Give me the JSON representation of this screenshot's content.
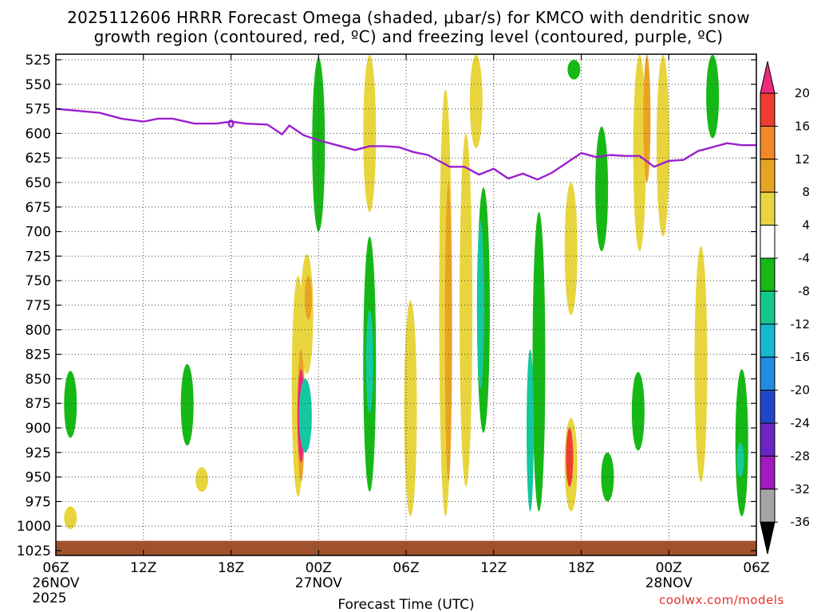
{
  "chart_data": {
    "type": "heatmap",
    "title_line1": "2025112606 HRRR Forecast Omega (shaded, μbar/s) for KMCO with dendritic snow",
    "title_line2": "growth region (contoured, red, ºC) and freezing level (contoured, purple, ºC)",
    "xlabel": "Forecast Time (UTC)",
    "ylabel": "Pressure (hPa)",
    "x_range_hours": [
      0,
      48
    ],
    "y_range_hpa": [
      525,
      1025
    ],
    "x_ticks": [
      {
        "hour": 0,
        "label": "06Z",
        "date": "26NOV",
        "year": "2025"
      },
      {
        "hour": 6,
        "label": "12Z"
      },
      {
        "hour": 12,
        "label": "18Z"
      },
      {
        "hour": 18,
        "label": "00Z",
        "date": "27NOV"
      },
      {
        "hour": 24,
        "label": "06Z"
      },
      {
        "hour": 30,
        "label": "12Z"
      },
      {
        "hour": 36,
        "label": "18Z"
      },
      {
        "hour": 42,
        "label": "00Z",
        "date": "28NOV"
      },
      {
        "hour": 48,
        "label": "06Z"
      }
    ],
    "y_ticks": [
      525,
      550,
      575,
      600,
      625,
      650,
      675,
      700,
      725,
      750,
      775,
      800,
      825,
      850,
      875,
      900,
      925,
      950,
      975,
      1000,
      1025
    ],
    "freezing_level": {
      "label": "0",
      "hours": [
        0,
        1.5,
        3,
        4.5,
        6,
        7,
        8,
        9.5,
        11,
        12,
        13,
        14.5,
        15.5,
        16,
        17,
        18,
        19,
        20.5,
        21.5,
        22.5,
        23.5,
        24.5,
        25.5,
        27,
        28,
        29,
        30,
        31,
        32,
        33,
        34,
        35,
        36,
        37,
        38,
        39,
        40,
        41,
        42,
        43,
        44,
        45,
        46,
        47,
        48
      ],
      "pressure": [
        575,
        577,
        579,
        585,
        588,
        585,
        585,
        590,
        590,
        588,
        590,
        591,
        601,
        592,
        602,
        607,
        611,
        617,
        613,
        613,
        614,
        619,
        622,
        634,
        634,
        642,
        636,
        646,
        641,
        647,
        640,
        630,
        620,
        624,
        622,
        623,
        623,
        634,
        628,
        627,
        618,
        614,
        610,
        612,
        612
      ]
    },
    "ground": {
      "pressure_top": 1015
    },
    "omega_regions": [
      {
        "hour": 1.0,
        "p_top": 842,
        "p_bot": 910,
        "value": -6
      },
      {
        "hour": 1.0,
        "p_top": 980,
        "p_bot": 1003,
        "value": 5
      },
      {
        "hour": 9.0,
        "p_top": 835,
        "p_bot": 918,
        "value": -6
      },
      {
        "hour": 10.0,
        "p_top": 940,
        "p_bot": 965,
        "value": 5
      },
      {
        "hour": 16.6,
        "p_top": 745,
        "p_bot": 970,
        "value": 5
      },
      {
        "hour": 16.8,
        "p_top": 820,
        "p_bot": 955,
        "value": 10
      },
      {
        "hour": 16.8,
        "p_top": 840,
        "p_bot": 935,
        "value": 18
      },
      {
        "hour": 17.2,
        "p_top": 723,
        "p_bot": 845,
        "value": 5
      },
      {
        "hour": 17.3,
        "p_top": 745,
        "p_bot": 790,
        "value": 10
      },
      {
        "hour": 17.1,
        "p_top": 850,
        "p_bot": 925,
        "value": -8
      },
      {
        "hour": 18.0,
        "p_top": 523,
        "p_bot": 700,
        "value": -6
      },
      {
        "hour": 21.5,
        "p_top": 520,
        "p_bot": 680,
        "value": 5
      },
      {
        "hour": 21.5,
        "p_top": 705,
        "p_bot": 965,
        "value": -6
      },
      {
        "hour": 21.5,
        "p_top": 780,
        "p_bot": 885,
        "value": -10
      },
      {
        "hour": 24.3,
        "p_top": 770,
        "p_bot": 990,
        "value": 5
      },
      {
        "hour": 26.7,
        "p_top": 555,
        "p_bot": 990,
        "value": 5
      },
      {
        "hour": 26.9,
        "p_top": 650,
        "p_bot": 955,
        "value": 9
      },
      {
        "hour": 28.1,
        "p_top": 600,
        "p_bot": 960,
        "value": 5
      },
      {
        "hour": 28.8,
        "p_top": 520,
        "p_bot": 615,
        "value": 5
      },
      {
        "hour": 29.3,
        "p_top": 655,
        "p_bot": 905,
        "value": -6
      },
      {
        "hour": 29.1,
        "p_top": 690,
        "p_bot": 860,
        "value": -10
      },
      {
        "hour": 33.1,
        "p_top": 680,
        "p_bot": 985,
        "value": -6
      },
      {
        "hour": 32.5,
        "p_top": 820,
        "p_bot": 985,
        "value": -10
      },
      {
        "hour": 35.3,
        "p_top": 890,
        "p_bot": 985,
        "value": 5
      },
      {
        "hour": 35.2,
        "p_top": 900,
        "p_bot": 960,
        "value": 16
      },
      {
        "hour": 35.3,
        "p_top": 650,
        "p_bot": 785,
        "value": 5
      },
      {
        "hour": 35.5,
        "p_top": 525,
        "p_bot": 545,
        "value": -6
      },
      {
        "hour": 37.4,
        "p_top": 593,
        "p_bot": 720,
        "value": -6
      },
      {
        "hour": 37.8,
        "p_top": 925,
        "p_bot": 975,
        "value": -6
      },
      {
        "hour": 40.0,
        "p_top": 520,
        "p_bot": 720,
        "value": 5
      },
      {
        "hour": 40.5,
        "p_top": 520,
        "p_bot": 650,
        "value": 10
      },
      {
        "hour": 41.6,
        "p_top": 520,
        "p_bot": 705,
        "value": 5
      },
      {
        "hour": 39.9,
        "p_top": 843,
        "p_bot": 923,
        "value": -6
      },
      {
        "hour": 44.2,
        "p_top": 715,
        "p_bot": 955,
        "value": 5
      },
      {
        "hour": 45.0,
        "p_top": 520,
        "p_bot": 605,
        "value": -6
      },
      {
        "hour": 47.0,
        "p_top": 840,
        "p_bot": 990,
        "value": -6
      },
      {
        "hour": 46.9,
        "p_top": 915,
        "p_bot": 950,
        "value": -10
      }
    ],
    "colorbar": {
      "labels": [
        "20",
        "16",
        "12",
        "8",
        "4",
        "-4",
        "-8",
        "-12",
        "-16",
        "-20",
        "-24",
        "-28",
        "-32",
        "-36"
      ],
      "colors": [
        "#ee2a7b",
        "#ef3d2f",
        "#f0892a",
        "#e9a322",
        "#e8d53e",
        "#ffffff",
        "#16b816",
        "#14c88c",
        "#16b8d0",
        "#1f8ce0",
        "#1e48c8",
        "#6a25c2",
        "#a21bc0",
        "#a5a5a5",
        "#000000"
      ]
    },
    "omega_colors": {
      "-10": "#14c8a0",
      "-8": "#14c8a0",
      "-6": "#16b816",
      "5": "#e8d53e",
      "9": "#e9a322",
      "10": "#e9a322",
      "16": "#ef3d2f",
      "18": "#ee2a7b"
    },
    "freezing_color": "#9b1fcf",
    "ground_color": "#a0522d"
  },
  "credit": "coolwx.com/models"
}
